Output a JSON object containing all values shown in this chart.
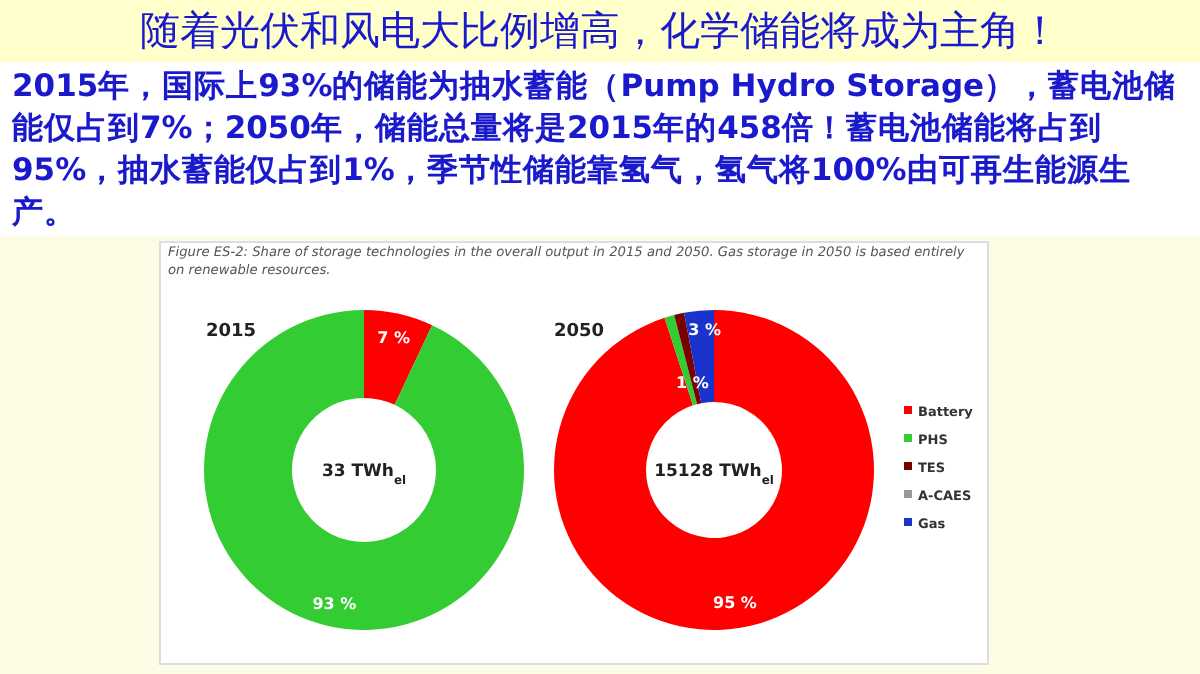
{
  "chart_data": [
    {
      "type": "donut",
      "title": "2015",
      "categories": [
        null,
        null
      ],
      "values": [
        7,
        93
      ],
      "colors": [
        "#ff0000",
        "#33cc33"
      ],
      "value_labels": [
        "7 %",
        "93 %"
      ],
      "legend": false,
      "annotations": [
        "随着光伏和风电大比例增高，化学储能将成为主角！",
        "2015年，国际上93%的储能为抽水蓄能（Pump Hydro Storage），蓄电池储能仅占到7%；2050年，储能总量将是2015年的458倍！蓄电池储能将占到95%，抽水蓄能仅占到1%，季节性储能靠氢气，氢气将100%由可再生能源生产。",
        "Figure ES-2: Share of storage technologies in the overall output in 2015 and 2050. Gas storage in 2050 is based entirely on renewable resources.",
        "33 TWh$_{el}$"
      ]
    },
    {
      "type": "donut",
      "title": "2050",
      "categories": [
        "Battery",
        "PHS",
        "TES",
        "A-CAES",
        "Gas"
      ],
      "values": [
        95,
        1,
        1,
        0,
        3
      ],
      "colors": [
        "#ff0000",
        "#33cc33",
        "#7a0000",
        "#999999",
        "#1a33cc"
      ],
      "value_labels": [
        "95 %",
        "1 %",
        null,
        null,
        "3 %"
      ],
      "legend": "right",
      "annotations": [
        "15128 TWh$_{el}$"
      ]
    }
  ]
}
